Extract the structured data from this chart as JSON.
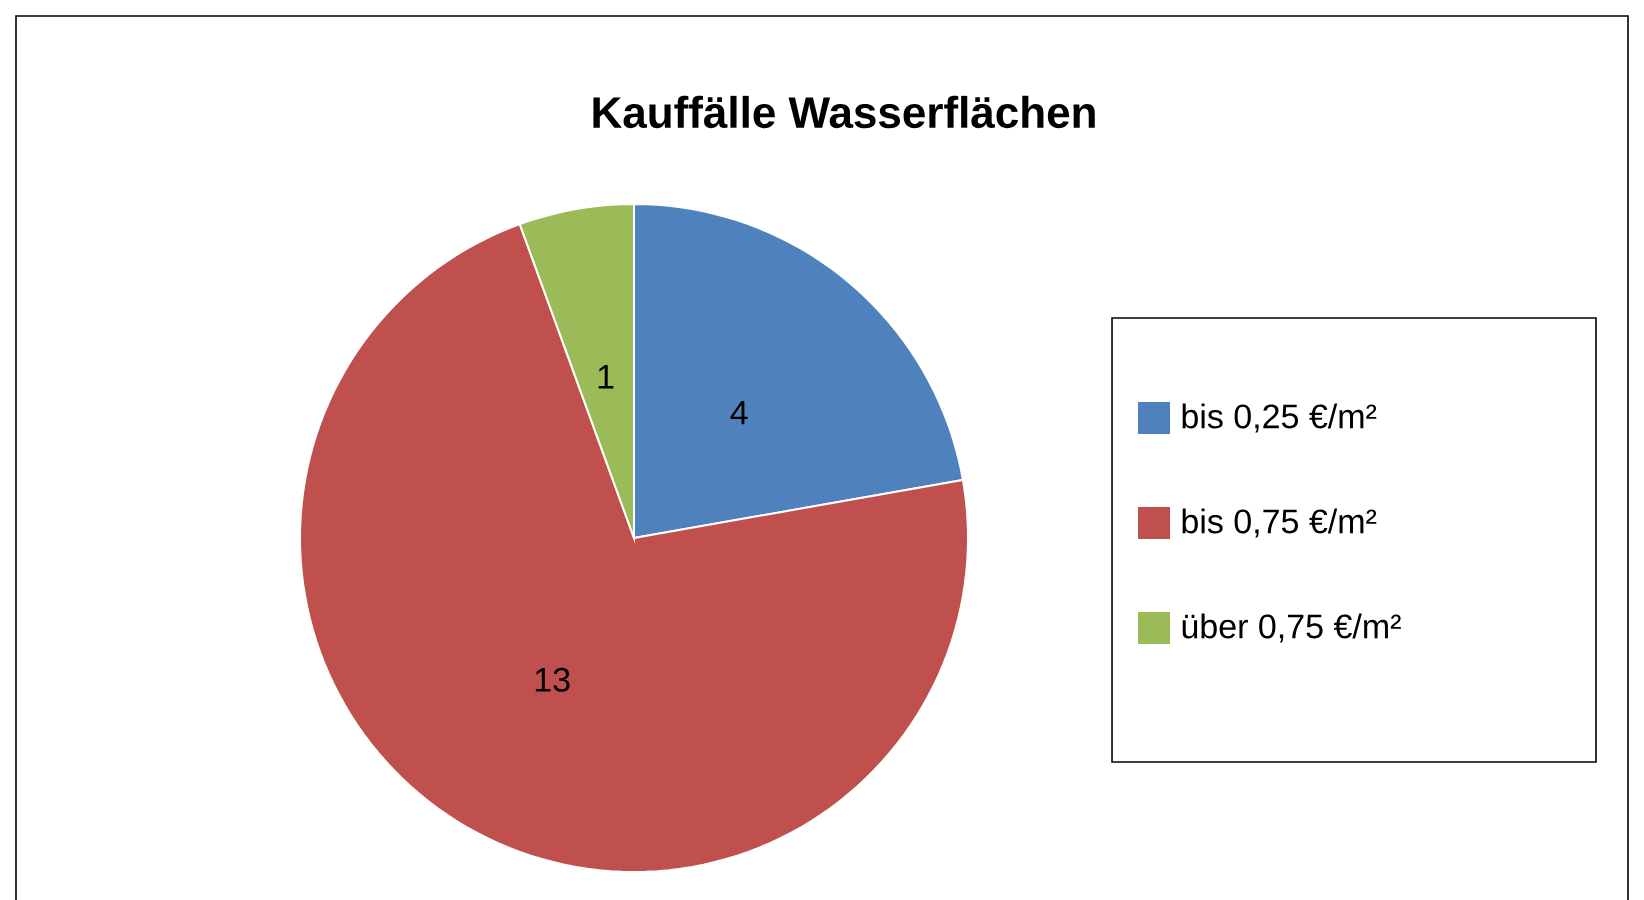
{
  "chart_data": {
    "type": "pie",
    "title": "Kauffälle Wasserflächen",
    "categories": [
      "bis 0,25 €/m²",
      "bis 0,75 €/m²",
      "über 0,75 €/m²"
    ],
    "values": [
      4,
      13,
      1
    ],
    "colors": [
      "#4f81bd",
      "#c0504d",
      "#9bbb59"
    ],
    "data_labels": true,
    "legend": "right"
  }
}
